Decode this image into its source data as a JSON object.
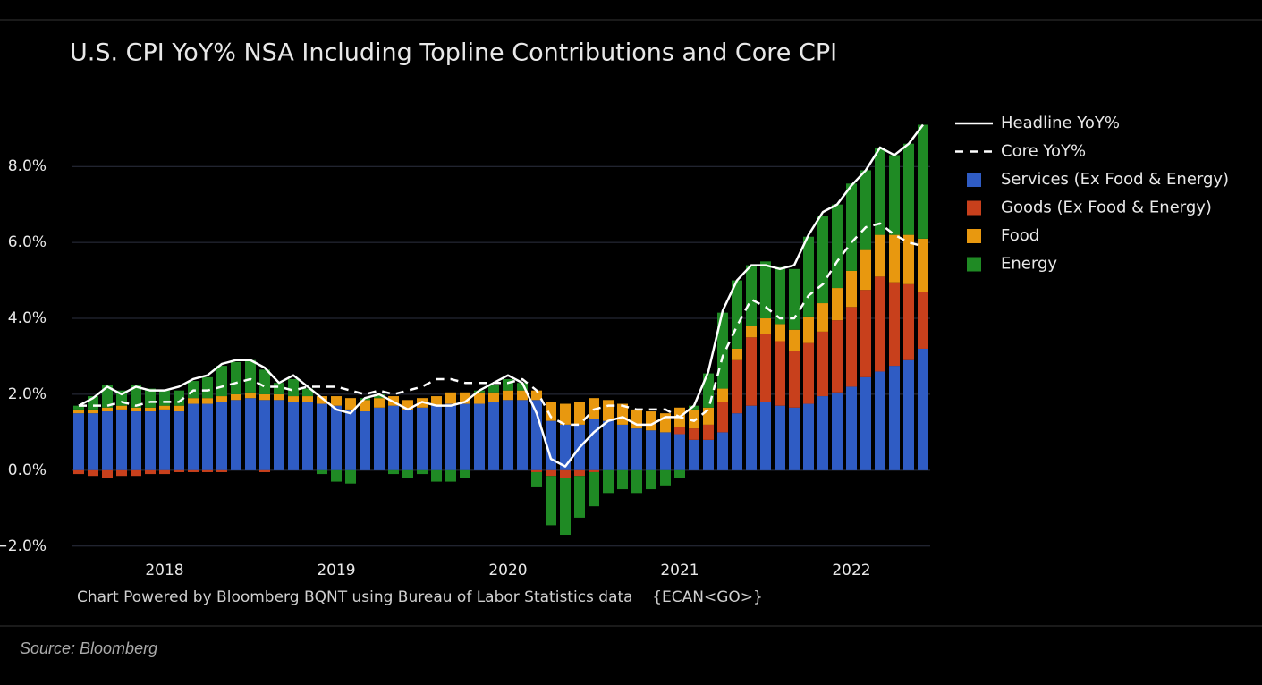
{
  "chart_data": {
    "type": "bar",
    "title": "U.S. CPI YoY% NSA Including Topline Contributions and Core CPI",
    "note": "Chart Powered by Bloomberg BQNT using Bureau of Labor Statistics data    {ECAN<GO>}",
    "categories": [
      null,
      null,
      null,
      null,
      null,
      null,
      "2018",
      null,
      null,
      null,
      null,
      null,
      null,
      null,
      null,
      null,
      null,
      null,
      "2019",
      null,
      null,
      null,
      null,
      null,
      null,
      null,
      null,
      null,
      null,
      null,
      "2020",
      null,
      null,
      null,
      null,
      null,
      null,
      null,
      null,
      null,
      null,
      null,
      "2021",
      null,
      null,
      null,
      null,
      null,
      null,
      null,
      null,
      null,
      null,
      null,
      "2022",
      null,
      null,
      null,
      null,
      null
    ],
    "ylim": [
      -2.1,
      9.3
    ],
    "yticks": [
      {
        "value": -2,
        "label": "−2.0%"
      },
      {
        "value": 0,
        "label": "0.0%"
      },
      {
        "value": 2,
        "label": "2.0%"
      },
      {
        "value": 4,
        "label": "4.0%"
      },
      {
        "value": 6,
        "label": "6.0%"
      },
      {
        "value": 8,
        "label": "8.0%"
      }
    ],
    "grid": true,
    "stacked": true,
    "series": [
      {
        "name": "Headline YoY%",
        "kind": "line",
        "dashed": false,
        "color": "#ffffff",
        "values": [
          1.7,
          1.9,
          2.2,
          2.0,
          2.2,
          2.1,
          2.1,
          2.2,
          2.4,
          2.5,
          2.8,
          2.9,
          2.9,
          2.7,
          2.3,
          2.5,
          2.2,
          1.9,
          1.6,
          1.5,
          1.9,
          2.0,
          1.8,
          1.6,
          1.8,
          1.7,
          1.7,
          1.8,
          2.1,
          2.3,
          2.5,
          2.3,
          1.5,
          0.3,
          0.1,
          0.6,
          1.0,
          1.3,
          1.4,
          1.2,
          1.2,
          1.4,
          1.4,
          1.7,
          2.6,
          4.2,
          5.0,
          5.4,
          5.4,
          5.3,
          5.4,
          6.2,
          6.8,
          7.0,
          7.5,
          7.9,
          8.5,
          8.3,
          8.6,
          9.1
        ]
      },
      {
        "name": "Core YoY%",
        "kind": "line",
        "dashed": true,
        "color": "#ffffff",
        "values": [
          1.7,
          1.7,
          1.7,
          1.8,
          1.7,
          1.8,
          1.8,
          1.8,
          2.1,
          2.1,
          2.2,
          2.3,
          2.4,
          2.2,
          2.2,
          2.1,
          2.2,
          2.2,
          2.2,
          2.1,
          2.0,
          2.1,
          2.0,
          2.1,
          2.2,
          2.4,
          2.4,
          2.3,
          2.3,
          2.3,
          2.3,
          2.4,
          2.1,
          1.4,
          1.2,
          1.2,
          1.6,
          1.7,
          1.7,
          1.6,
          1.6,
          1.6,
          1.4,
          1.3,
          1.6,
          3.0,
          3.8,
          4.5,
          4.3,
          4.0,
          4.0,
          4.6,
          4.9,
          5.5,
          6.0,
          6.4,
          6.5,
          6.2,
          6.0,
          5.9
        ]
      },
      {
        "name": "Services (Ex Food & Energy)",
        "kind": "bar",
        "color": "#2f5cc4",
        "values": [
          1.5,
          1.5,
          1.55,
          1.6,
          1.55,
          1.55,
          1.6,
          1.55,
          1.75,
          1.75,
          1.8,
          1.85,
          1.9,
          1.85,
          1.85,
          1.8,
          1.8,
          1.75,
          1.7,
          1.6,
          1.55,
          1.65,
          1.7,
          1.6,
          1.65,
          1.7,
          1.75,
          1.75,
          1.75,
          1.8,
          1.85,
          1.85,
          1.85,
          1.3,
          1.2,
          1.2,
          1.35,
          1.3,
          1.2,
          1.1,
          1.05,
          1.0,
          0.95,
          0.8,
          0.8,
          1.0,
          1.5,
          1.7,
          1.8,
          1.7,
          1.65,
          1.75,
          1.95,
          2.05,
          2.2,
          2.45,
          2.6,
          2.75,
          2.9,
          3.2
        ]
      },
      {
        "name": "Goods (Ex Food & Energy)",
        "kind": "bar",
        "color": "#c8401c",
        "values": [
          -0.1,
          -0.15,
          -0.2,
          -0.15,
          -0.15,
          -0.1,
          -0.1,
          -0.05,
          -0.05,
          -0.05,
          -0.05,
          0,
          0,
          -0.05,
          0,
          0,
          0,
          0,
          0,
          0,
          0,
          0,
          0,
          0,
          0,
          0,
          0,
          0,
          0,
          0,
          0,
          0,
          -0.05,
          -0.15,
          -0.2,
          -0.15,
          -0.05,
          0,
          0,
          0,
          0,
          0,
          0.2,
          0.3,
          0.4,
          0.8,
          1.4,
          1.8,
          1.8,
          1.7,
          1.5,
          1.6,
          1.7,
          1.9,
          2.1,
          2.3,
          2.5,
          2.2,
          2.0,
          1.5
        ]
      },
      {
        "name": "Food",
        "kind": "bar",
        "color": "#e8980f",
        "values": [
          0.1,
          0.1,
          0.1,
          0.1,
          0.1,
          0.1,
          0.1,
          0.15,
          0.15,
          0.15,
          0.15,
          0.15,
          0.15,
          0.15,
          0.15,
          0.15,
          0.15,
          0.2,
          0.25,
          0.3,
          0.3,
          0.25,
          0.25,
          0.25,
          0.25,
          0.25,
          0.3,
          0.3,
          0.3,
          0.25,
          0.25,
          0.25,
          0.25,
          0.5,
          0.55,
          0.6,
          0.55,
          0.55,
          0.55,
          0.5,
          0.5,
          0.5,
          0.5,
          0.5,
          0.45,
          0.35,
          0.3,
          0.3,
          0.4,
          0.45,
          0.55,
          0.7,
          0.75,
          0.85,
          0.95,
          1.05,
          1.1,
          1.25,
          1.3,
          1.4
        ]
      },
      {
        "name": "Energy",
        "kind": "bar",
        "color": "#1f8a24",
        "values": [
          0.1,
          0.35,
          0.6,
          0.4,
          0.6,
          0.5,
          0.4,
          0.4,
          0.45,
          0.55,
          0.8,
          0.85,
          0.85,
          0.65,
          0.3,
          0.45,
          0.2,
          -0.1,
          -0.3,
          -0.35,
          0.05,
          0.1,
          -0.1,
          -0.2,
          -0.1,
          -0.3,
          -0.3,
          -0.2,
          0.05,
          0.2,
          0.3,
          0.2,
          -0.4,
          -1.3,
          -1.5,
          -1.1,
          -0.9,
          -0.6,
          -0.5,
          -0.6,
          -0.5,
          -0.4,
          -0.2,
          0.1,
          0.9,
          2.0,
          1.8,
          1.6,
          1.5,
          1.5,
          1.6,
          2.1,
          2.3,
          2.2,
          2.3,
          2.1,
          2.3,
          2.1,
          2.4,
          3.0
        ]
      }
    ]
  },
  "source": "Source: Bloomberg"
}
